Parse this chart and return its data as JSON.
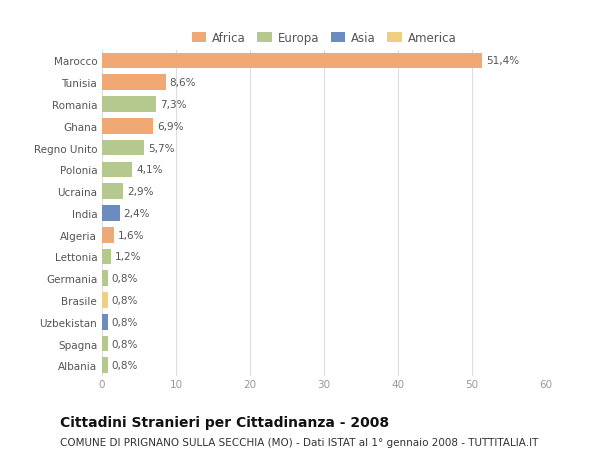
{
  "countries": [
    "Marocco",
    "Tunisia",
    "Romania",
    "Ghana",
    "Regno Unito",
    "Polonia",
    "Ucraina",
    "India",
    "Algeria",
    "Lettonia",
    "Germania",
    "Brasile",
    "Uzbekistan",
    "Spagna",
    "Albania"
  ],
  "values": [
    51.4,
    8.6,
    7.3,
    6.9,
    5.7,
    4.1,
    2.9,
    2.4,
    1.6,
    1.2,
    0.8,
    0.8,
    0.8,
    0.8,
    0.8
  ],
  "labels": [
    "51,4%",
    "8,6%",
    "7,3%",
    "6,9%",
    "5,7%",
    "4,1%",
    "2,9%",
    "2,4%",
    "1,6%",
    "1,2%",
    "0,8%",
    "0,8%",
    "0,8%",
    "0,8%",
    "0,8%"
  ],
  "continents": [
    "Africa",
    "Africa",
    "Europa",
    "Africa",
    "Europa",
    "Europa",
    "Europa",
    "Asia",
    "Africa",
    "Europa",
    "Europa",
    "America",
    "Asia",
    "Europa",
    "Europa"
  ],
  "colors": {
    "Africa": "#F0A875",
    "Europa": "#B5C98E",
    "Asia": "#6B8CBF",
    "America": "#F0D080"
  },
  "xlim": [
    0,
    60
  ],
  "xticks": [
    0,
    10,
    20,
    30,
    40,
    50,
    60
  ],
  "title": "Cittadini Stranieri per Cittadinanza - 2008",
  "subtitle": "COMUNE DI PRIGNANO SULLA SECCHIA (MO) - Dati ISTAT al 1° gennaio 2008 - TUTTITALIA.IT",
  "bg_color": "#FFFFFF",
  "grid_color": "#DDDDDD",
  "bar_height": 0.72,
  "title_fontsize": 10,
  "subtitle_fontsize": 7.5,
  "label_fontsize": 7.5,
  "tick_fontsize": 7.5,
  "legend_fontsize": 8.5
}
